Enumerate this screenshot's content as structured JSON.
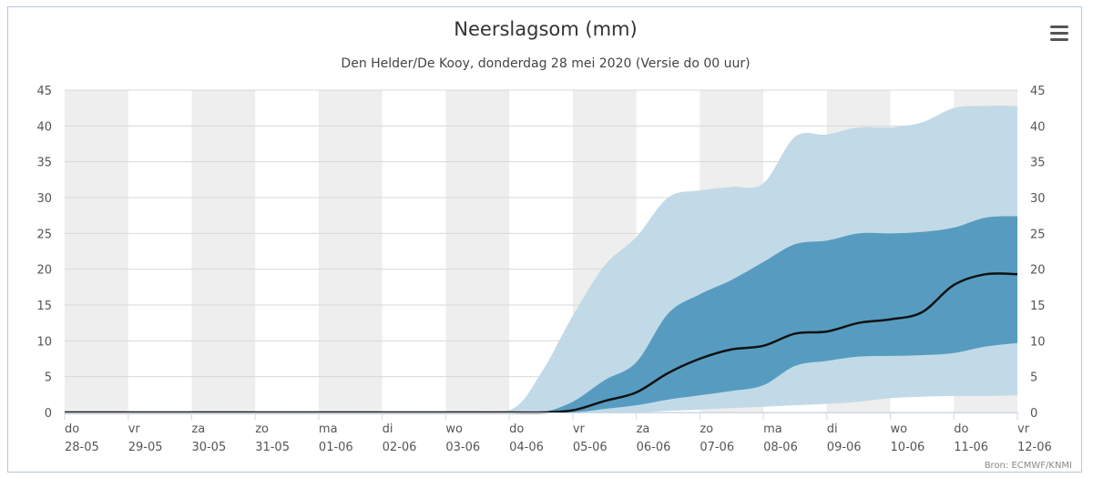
{
  "chart_data": {
    "type": "area",
    "title": "Neerslagsom (mm)",
    "subtitle": "Den Helder/De Kooy, donderdag 28 mei 2020 (Versie do 00 uur)",
    "credits": "Bron: ECMWF/KNMI",
    "xlabel": "",
    "ylabel": "",
    "ylim": [
      0,
      45
    ],
    "yticks": [
      0,
      5,
      10,
      15,
      20,
      25,
      30,
      35,
      40,
      45
    ],
    "grid": true,
    "x_start": "2020-05-28",
    "x_end": "2020-06-12",
    "x_ticks": [
      {
        "day": "do",
        "date": "28-05"
      },
      {
        "day": "vr",
        "date": "29-05"
      },
      {
        "day": "za",
        "date": "30-05"
      },
      {
        "day": "zo",
        "date": "31-05"
      },
      {
        "day": "ma",
        "date": "01-06"
      },
      {
        "day": "di",
        "date": "02-06"
      },
      {
        "day": "wo",
        "date": "03-06"
      },
      {
        "day": "do",
        "date": "04-06"
      },
      {
        "day": "vr",
        "date": "05-06"
      },
      {
        "day": "za",
        "date": "06-06"
      },
      {
        "day": "zo",
        "date": "07-06"
      },
      {
        "day": "ma",
        "date": "08-06"
      },
      {
        "day": "di",
        "date": "09-06"
      },
      {
        "day": "wo",
        "date": "10-06"
      },
      {
        "day": "do",
        "date": "11-06"
      },
      {
        "day": "vr",
        "date": "12-06"
      }
    ],
    "x": [
      "2020-05-28",
      "2020-05-29",
      "2020-05-30",
      "2020-05-31",
      "2020-06-01",
      "2020-06-02",
      "2020-06-03",
      "2020-06-04",
      "2020-06-04 12:00",
      "2020-06-05",
      "2020-06-05 12:00",
      "2020-06-06",
      "2020-06-06 12:00",
      "2020-06-07",
      "2020-06-07 12:00",
      "2020-06-08",
      "2020-06-08 12:00",
      "2020-06-09",
      "2020-06-09 12:00",
      "2020-06-10",
      "2020-06-10 12:00",
      "2020-06-11",
      "2020-06-11 12:00",
      "2020-06-12"
    ],
    "series": [
      {
        "type": "range",
        "outer_low": [
          0,
          0,
          0,
          0,
          0,
          0,
          0,
          0,
          0,
          0,
          0,
          0,
          0.2,
          0.4,
          0.6,
          0.8,
          1.0,
          1.2,
          1.5,
          2.0,
          2.2,
          2.3,
          2.3,
          2.4
        ],
        "outer_high": [
          0,
          0.1,
          0.1,
          0.1,
          0.1,
          0.1,
          0.1,
          0.3,
          5.5,
          13.5,
          20.5,
          24.5,
          30.0,
          31.0,
          31.5,
          32.0,
          38.5,
          38.8,
          39.8,
          39.8,
          40.5,
          42.5,
          42.8,
          42.8
        ],
        "color": "#bfd8e6"
      },
      {
        "type": "range",
        "inner_low": [
          0,
          0,
          0,
          0,
          0,
          0,
          0,
          0,
          0,
          0,
          0.5,
          1.0,
          1.8,
          2.4,
          3.0,
          3.8,
          6.5,
          7.2,
          7.8,
          7.9,
          8.0,
          8.3,
          9.2,
          9.7
        ],
        "inner_high": [
          0,
          0,
          0,
          0,
          0,
          0,
          0,
          0,
          0,
          1.5,
          4.5,
          7.0,
          13.8,
          16.5,
          18.5,
          21.0,
          23.5,
          24.0,
          25.0,
          25.0,
          25.2,
          25.8,
          27.2,
          27.4
        ],
        "color": "#4b95bb"
      },
      {
        "type": "line",
        "median": [
          0,
          0,
          0,
          0,
          0,
          0,
          0,
          0,
          0,
          0.3,
          1.6,
          2.8,
          5.5,
          7.5,
          8.8,
          9.3,
          11.0,
          11.3,
          12.5,
          13.0,
          14.0,
          17.8,
          19.3,
          19.3
        ],
        "color": "#111111"
      }
    ]
  }
}
